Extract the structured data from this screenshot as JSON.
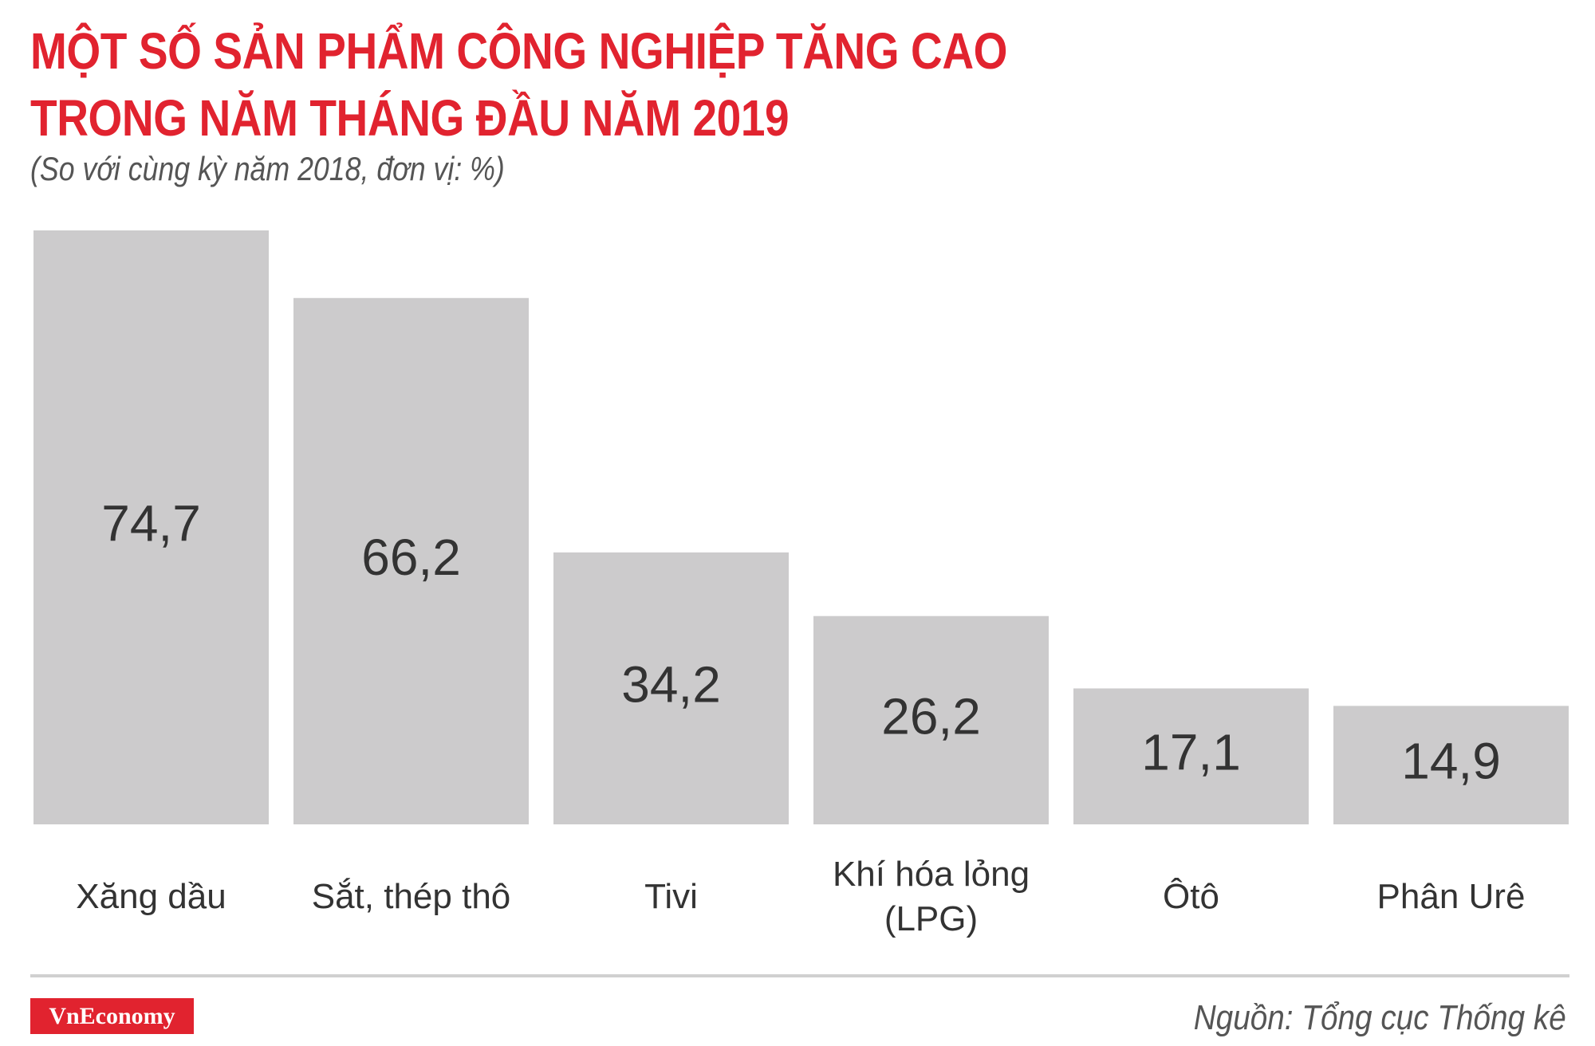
{
  "chart_data": {
    "type": "bar",
    "title": "MỘT SỐ SẢN PHẨM CÔNG NGHIỆP TĂNG CAO\nTRONG NĂM THÁNG ĐẦU NĂM 2019",
    "subtitle": "(So với cùng kỳ năm 2018, đơn vị: %)",
    "categories": [
      "Xăng dầu",
      "Sắt, thép thô",
      "Tivi",
      "Khí hóa lỏng (LPG)",
      "Ôtô",
      "Phân Urê"
    ],
    "values": [
      74.7,
      66.2,
      34.2,
      26.2,
      17.1,
      14.9
    ],
    "value_labels": [
      "74,7",
      "66,2",
      "34,2",
      "26,2",
      "17,1",
      "14,9"
    ],
    "color": "#cccbcc",
    "logo": "VnEconomy",
    "source": "Nguồn: Tổng cục Thống kê"
  }
}
